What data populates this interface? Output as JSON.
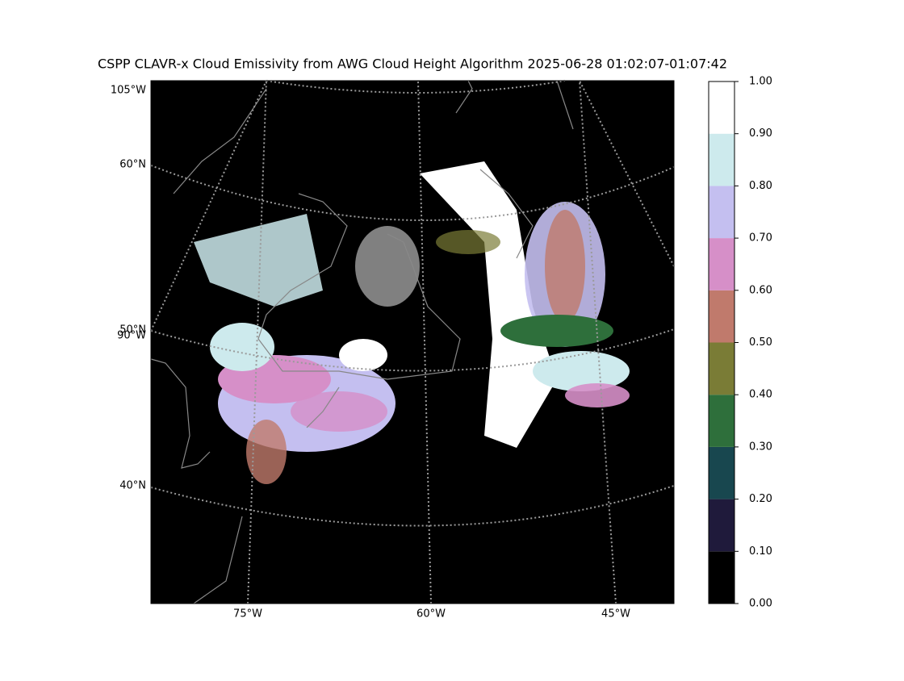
{
  "title": "CSPP CLAVR-x Cloud Emissivity from AWG Cloud Height Algorithm 2025-06-28 01:02:07-01:07:42",
  "map": {
    "lat_labels": [
      "60°N",
      "50°N",
      "40°N"
    ],
    "lon_labels_left": [
      "105°W",
      "90°W"
    ],
    "lon_labels_bottom": [
      "75°W",
      "60°W",
      "45°W"
    ]
  },
  "colorbar": {
    "lim": [
      0,
      1
    ],
    "ticks": [
      {
        "value": 0,
        "label": "0.00"
      },
      {
        "value": 0.1,
        "label": "0.10"
      },
      {
        "value": 0.2,
        "label": "0.20"
      },
      {
        "value": 0.3,
        "label": "0.30"
      },
      {
        "value": 0.4,
        "label": "0.40"
      },
      {
        "value": 0.5,
        "label": "0.50"
      },
      {
        "value": 0.6,
        "label": "0.60"
      },
      {
        "value": 0.7,
        "label": "0.70"
      },
      {
        "value": 0.8,
        "label": "0.80"
      },
      {
        "value": 0.9,
        "label": "0.90"
      },
      {
        "value": 1,
        "label": "1.00"
      }
    ],
    "colors": [
      "#000000",
      "#1f1a3b",
      "#18474f",
      "#2e6f3b",
      "#7a7c36",
      "#c07a6c",
      "#d68fc8",
      "#c4bff0",
      "#cdeaed",
      "#ffffff"
    ]
  }
}
